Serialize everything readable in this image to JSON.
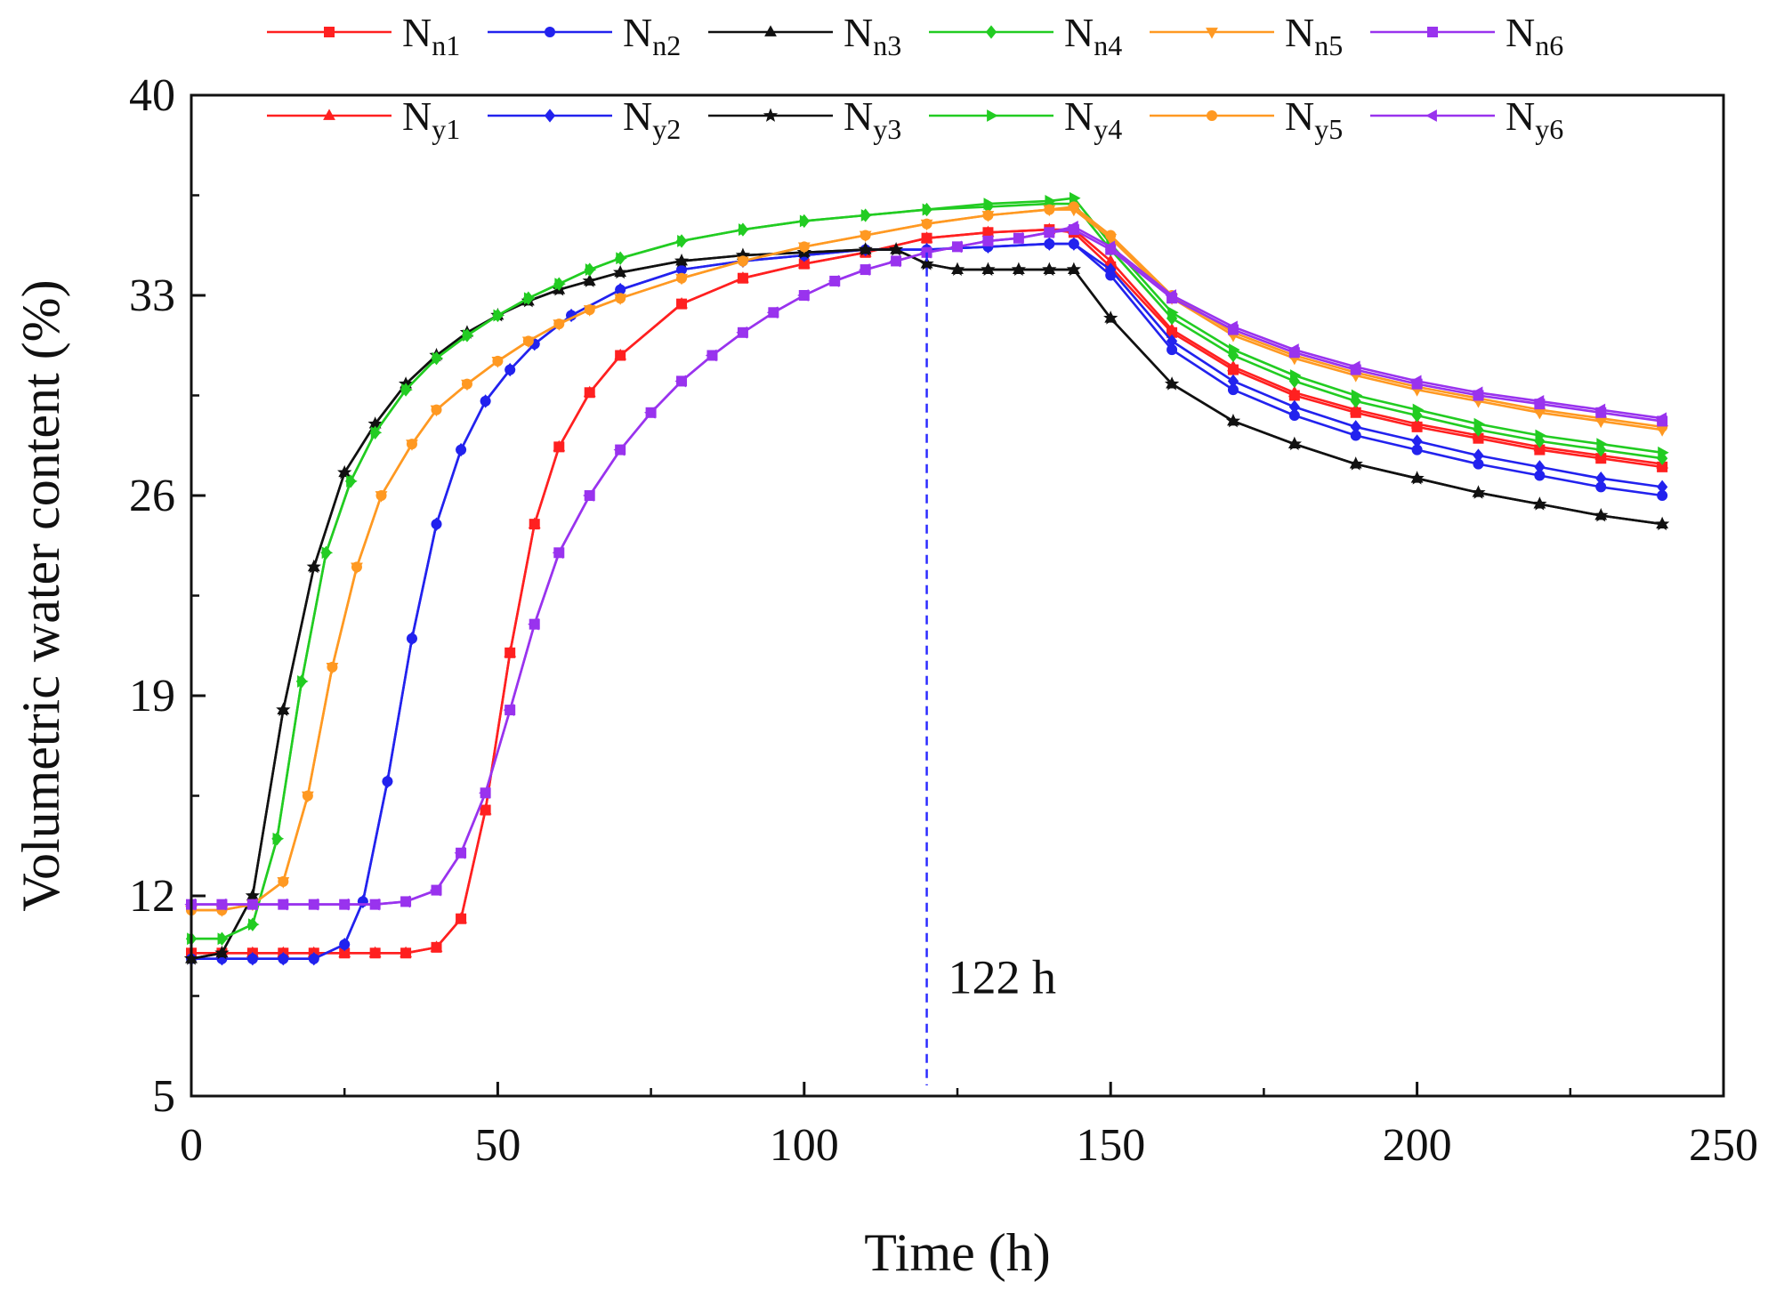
{
  "chart_data": {
    "type": "line",
    "title": "",
    "xlabel": "Time (h)",
    "ylabel": "Volumetric water content (%)",
    "xlim": [
      0,
      250
    ],
    "ylim": [
      5,
      40
    ],
    "xticks": [
      0,
      50,
      100,
      150,
      200,
      250
    ],
    "yticks": [
      5,
      12,
      19,
      26,
      33,
      40
    ],
    "xtick_labels": [
      "0",
      "50",
      "100",
      "150",
      "200",
      "250"
    ],
    "ytick_labels": [
      "5",
      "12",
      "19",
      "26",
      "33",
      "40"
    ],
    "legend_position": "top",
    "annotation": {
      "label": "122 h",
      "x": 120,
      "style": "dashed vertical line",
      "color": "#2b2bff"
    },
    "series": [
      {
        "name": "Nn1",
        "base": "N",
        "sub": "n1",
        "color": "#ff2020",
        "marker": "square",
        "x": [
          0,
          5,
          10,
          15,
          20,
          25,
          30,
          35,
          40,
          44,
          48,
          52,
          56,
          60,
          65,
          70,
          80,
          90,
          100,
          110,
          120,
          130,
          140,
          144,
          150,
          160,
          170,
          180,
          190,
          200,
          210,
          220,
          230,
          240
        ],
        "y": [
          10,
          10,
          10,
          10,
          10,
          10,
          10,
          10,
          10.2,
          11.2,
          15,
          20.5,
          25,
          27.7,
          29.6,
          30.9,
          32.7,
          33.6,
          34.1,
          34.5,
          35,
          35.2,
          35.3,
          35.2,
          34,
          31.7,
          30.4,
          29.5,
          28.9,
          28.4,
          28,
          27.6,
          27.3,
          27
        ]
      },
      {
        "name": "Ny1",
        "base": "N",
        "sub": "y1",
        "color": "#ff2020",
        "marker": "triangle",
        "x": [
          0,
          5,
          10,
          15,
          20,
          25,
          30,
          35,
          40,
          44,
          48,
          52,
          56,
          60,
          65,
          70,
          80,
          90,
          100,
          110,
          120,
          130,
          140,
          144,
          150,
          160,
          170,
          180,
          190,
          200,
          210,
          220,
          230,
          240
        ],
        "y": [
          10,
          10,
          10,
          10,
          10,
          10,
          10,
          10,
          10.2,
          11.2,
          15,
          20.5,
          25,
          27.7,
          29.6,
          30.9,
          32.7,
          33.6,
          34.1,
          34.5,
          35,
          35.2,
          35.3,
          35.3,
          34.2,
          31.8,
          30.5,
          29.6,
          29,
          28.5,
          28.1,
          27.7,
          27.4,
          27.1
        ]
      },
      {
        "name": "Nn2",
        "base": "N",
        "sub": "n2",
        "color": "#2222ee",
        "marker": "circle",
        "x": [
          0,
          5,
          10,
          15,
          20,
          25,
          28,
          32,
          36,
          40,
          44,
          48,
          52,
          56,
          62,
          70,
          80,
          90,
          100,
          110,
          120,
          130,
          140,
          144,
          150,
          160,
          170,
          180,
          190,
          200,
          210,
          220,
          230,
          240
        ],
        "y": [
          9.8,
          9.8,
          9.8,
          9.8,
          9.8,
          10.3,
          11.8,
          16,
          21,
          25,
          27.6,
          29.3,
          30.4,
          31.3,
          32.3,
          33.2,
          33.9,
          34.2,
          34.4,
          34.6,
          34.6,
          34.7,
          34.8,
          34.8,
          33.7,
          31.1,
          29.7,
          28.8,
          28.1,
          27.6,
          27.1,
          26.7,
          26.3,
          26.0
        ]
      },
      {
        "name": "Ny2",
        "base": "N",
        "sub": "y2",
        "color": "#2222ee",
        "marker": "diamond",
        "x": [
          0,
          5,
          10,
          15,
          20,
          25,
          28,
          32,
          36,
          40,
          44,
          48,
          52,
          56,
          62,
          70,
          80,
          90,
          100,
          110,
          120,
          130,
          140,
          144,
          150,
          160,
          170,
          180,
          190,
          200,
          210,
          220,
          230,
          240
        ],
        "y": [
          9.8,
          9.8,
          9.8,
          9.8,
          9.8,
          10.3,
          11.8,
          16,
          21,
          25,
          27.6,
          29.3,
          30.4,
          31.3,
          32.3,
          33.2,
          33.9,
          34.2,
          34.4,
          34.6,
          34.6,
          34.7,
          34.8,
          34.8,
          33.9,
          31.4,
          30,
          29.1,
          28.4,
          27.9,
          27.4,
          27,
          26.6,
          26.3
        ]
      },
      {
        "name": "Nn3",
        "base": "N",
        "sub": "n3",
        "color": "#111111",
        "marker": "triangle",
        "x": [
          0,
          5,
          10,
          15,
          20,
          25,
          30,
          35,
          40,
          45,
          50,
          55,
          60,
          65,
          70,
          80,
          90,
          100,
          110,
          115,
          120,
          125,
          130,
          135,
          140,
          144,
          150,
          160,
          170,
          180,
          190,
          200,
          210,
          220,
          230,
          240
        ],
        "y": [
          9.8,
          10,
          12,
          18.5,
          23.5,
          26.8,
          28.5,
          29.9,
          30.9,
          31.7,
          32.3,
          32.8,
          33.2,
          33.5,
          33.8,
          34.2,
          34.4,
          34.5,
          34.6,
          34.6,
          34.1,
          33.9,
          33.9,
          33.9,
          33.9,
          33.9,
          32.2,
          29.9,
          28.6,
          27.8,
          27.1,
          26.6,
          26.1,
          25.7,
          25.3,
          25.0
        ]
      },
      {
        "name": "Ny3",
        "base": "N",
        "sub": "y3",
        "color": "#111111",
        "marker": "star",
        "x": [
          0,
          5,
          10,
          15,
          20,
          25,
          30,
          35,
          40,
          45,
          50,
          55,
          60,
          65,
          70,
          80,
          90,
          100,
          110,
          115,
          120,
          125,
          130,
          135,
          140,
          144,
          150,
          160,
          170,
          180,
          190,
          200,
          210,
          220,
          230,
          240
        ],
        "y": [
          9.8,
          10,
          12,
          18.5,
          23.5,
          26.8,
          28.5,
          29.9,
          30.9,
          31.7,
          32.3,
          32.8,
          33.2,
          33.5,
          33.8,
          34.2,
          34.4,
          34.5,
          34.6,
          34.6,
          34.1,
          33.9,
          33.9,
          33.9,
          33.9,
          33.9,
          32.2,
          29.9,
          28.6,
          27.8,
          27.1,
          26.6,
          26.1,
          25.7,
          25.3,
          25.0
        ]
      },
      {
        "name": "Nn4",
        "base": "N",
        "sub": "n4",
        "color": "#22cc22",
        "marker": "diamond",
        "x": [
          0,
          5,
          10,
          14,
          18,
          22,
          26,
          30,
          35,
          40,
          45,
          50,
          55,
          60,
          65,
          70,
          80,
          90,
          100,
          110,
          120,
          130,
          140,
          144,
          150,
          160,
          170,
          180,
          190,
          200,
          210,
          220,
          230,
          240
        ],
        "y": [
          10.5,
          10.5,
          11,
          14,
          19.5,
          24,
          26.5,
          28.2,
          29.7,
          30.8,
          31.6,
          32.3,
          32.9,
          33.4,
          33.9,
          34.3,
          34.9,
          35.3,
          35.6,
          35.8,
          36,
          36.1,
          36.2,
          36.2,
          34.6,
          32.2,
          30.9,
          30,
          29.3,
          28.8,
          28.3,
          27.9,
          27.6,
          27.3
        ]
      },
      {
        "name": "Ny4",
        "base": "N",
        "sub": "y4",
        "color": "#22cc22",
        "marker": "triangle-right",
        "x": [
          0,
          5,
          10,
          14,
          18,
          22,
          26,
          30,
          35,
          40,
          45,
          50,
          55,
          60,
          65,
          70,
          80,
          90,
          100,
          110,
          120,
          130,
          140,
          144,
          150,
          160,
          170,
          180,
          190,
          200,
          210,
          220,
          230,
          240
        ],
        "y": [
          10.5,
          10.5,
          11,
          14,
          19.5,
          24,
          26.5,
          28.2,
          29.7,
          30.8,
          31.6,
          32.3,
          32.9,
          33.4,
          33.9,
          34.3,
          34.9,
          35.3,
          35.6,
          35.8,
          36,
          36.2,
          36.3,
          36.4,
          34.8,
          32.4,
          31.1,
          30.2,
          29.5,
          29,
          28.5,
          28.1,
          27.8,
          27.5
        ]
      },
      {
        "name": "Nn5",
        "base": "N",
        "sub": "n5",
        "color": "#ff9922",
        "marker": "triangle-down",
        "x": [
          0,
          5,
          10,
          15,
          19,
          23,
          27,
          31,
          36,
          40,
          45,
          50,
          55,
          60,
          65,
          70,
          80,
          90,
          100,
          110,
          120,
          130,
          140,
          144,
          150,
          160,
          170,
          180,
          190,
          200,
          210,
          220,
          230,
          240
        ],
        "y": [
          11.5,
          11.5,
          11.7,
          12.5,
          15.5,
          20,
          23.5,
          26,
          27.8,
          29,
          29.9,
          30.7,
          31.4,
          32,
          32.5,
          32.9,
          33.6,
          34.2,
          34.7,
          35.1,
          35.5,
          35.8,
          36,
          36,
          35,
          32.9,
          31.6,
          30.8,
          30.2,
          29.7,
          29.3,
          28.9,
          28.6,
          28.3
        ]
      },
      {
        "name": "Ny5",
        "base": "N",
        "sub": "y5",
        "color": "#ff9922",
        "marker": "circle",
        "x": [
          0,
          5,
          10,
          15,
          19,
          23,
          27,
          31,
          36,
          40,
          45,
          50,
          55,
          60,
          65,
          70,
          80,
          90,
          100,
          110,
          120,
          130,
          140,
          144,
          150,
          160,
          170,
          180,
          190,
          200,
          210,
          220,
          230,
          240
        ],
        "y": [
          11.5,
          11.5,
          11.7,
          12.5,
          15.5,
          20,
          23.5,
          26,
          27.8,
          29,
          29.9,
          30.7,
          31.4,
          32,
          32.5,
          32.9,
          33.6,
          34.2,
          34.7,
          35.1,
          35.5,
          35.8,
          36,
          36.1,
          35.1,
          33,
          31.7,
          30.9,
          30.3,
          29.8,
          29.4,
          29,
          28.7,
          28.4
        ]
      },
      {
        "name": "Nn6",
        "base": "N",
        "sub": "n6",
        "color": "#9933ee",
        "marker": "square",
        "x": [
          0,
          5,
          10,
          15,
          20,
          25,
          30,
          35,
          40,
          44,
          48,
          52,
          56,
          60,
          65,
          70,
          75,
          80,
          85,
          90,
          95,
          100,
          105,
          110,
          115,
          120,
          125,
          130,
          135,
          140,
          144,
          150,
          160,
          170,
          180,
          190,
          200,
          210,
          220,
          230,
          240
        ],
        "y": [
          11.7,
          11.7,
          11.7,
          11.7,
          11.7,
          11.7,
          11.7,
          11.8,
          12.2,
          13.5,
          15.6,
          18.5,
          21.5,
          24,
          26,
          27.6,
          28.9,
          30,
          30.9,
          31.7,
          32.4,
          33,
          33.5,
          33.9,
          34.2,
          34.5,
          34.7,
          34.9,
          35,
          35.2,
          35.3,
          34.6,
          32.9,
          31.8,
          31,
          30.4,
          29.9,
          29.5,
          29.2,
          28.9,
          28.6
        ]
      },
      {
        "name": "Ny6",
        "base": "N",
        "sub": "y6",
        "color": "#9933ee",
        "marker": "triangle-left",
        "x": [
          0,
          5,
          10,
          15,
          20,
          25,
          30,
          35,
          40,
          44,
          48,
          52,
          56,
          60,
          65,
          70,
          75,
          80,
          85,
          90,
          95,
          100,
          105,
          110,
          115,
          120,
          125,
          130,
          135,
          140,
          144,
          150,
          160,
          170,
          180,
          190,
          200,
          210,
          220,
          230,
          240
        ],
        "y": [
          11.7,
          11.7,
          11.7,
          11.7,
          11.7,
          11.7,
          11.7,
          11.8,
          12.2,
          13.5,
          15.6,
          18.5,
          21.5,
          24,
          26,
          27.6,
          28.9,
          30,
          30.9,
          31.7,
          32.4,
          33,
          33.5,
          33.9,
          34.2,
          34.5,
          34.7,
          34.9,
          35,
          35.2,
          35.4,
          34.7,
          33,
          31.9,
          31.1,
          30.5,
          30,
          29.6,
          29.3,
          29,
          28.7
        ]
      }
    ]
  }
}
